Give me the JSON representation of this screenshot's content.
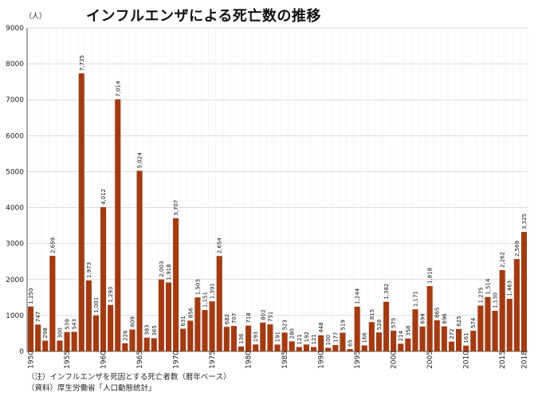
{
  "chart_data": {
    "type": "bar",
    "title": "インフルエンザによる死亡数の推移",
    "y_unit_label": "（人）",
    "xlabel": "",
    "ylabel": "",
    "ylim": [
      0,
      9000
    ],
    "yticks": [
      0,
      1000,
      2000,
      3000,
      4000,
      5000,
      6000,
      7000,
      8000,
      9000
    ],
    "x_tick_labels": [
      "1950",
      "1955",
      "1960",
      "1965",
      "1970",
      "1975",
      "1980",
      "1985",
      "1990",
      "1995",
      "2000",
      "2005",
      "2010",
      "2015",
      "2018"
    ],
    "grid": true,
    "bar_color": "#a33b12",
    "categories": [
      1950,
      1951,
      1952,
      1953,
      1954,
      1955,
      1956,
      1957,
      1958,
      1959,
      1960,
      1961,
      1962,
      1963,
      1964,
      1965,
      1966,
      1967,
      1968,
      1969,
      1970,
      1971,
      1972,
      1973,
      1974,
      1975,
      1976,
      1977,
      1978,
      1979,
      1980,
      1981,
      1982,
      1983,
      1984,
      1985,
      1986,
      1987,
      1988,
      1989,
      1990,
      1991,
      1992,
      1993,
      1994,
      1995,
      1996,
      1997,
      1998,
      1999,
      2000,
      2001,
      2002,
      2003,
      2004,
      2005,
      2006,
      2007,
      2008,
      2009,
      2010,
      2011,
      2012,
      2013,
      2014,
      2015,
      2016,
      2017,
      2018
    ],
    "values": [
      1250,
      747,
      298,
      2659,
      300,
      539,
      543,
      7735,
      1973,
      1001,
      4012,
      1293,
      7014,
      226,
      609,
      5024,
      383,
      365,
      2003,
      1918,
      3707,
      631,
      856,
      1503,
      1151,
      1391,
      2654,
      682,
      707,
      136,
      718,
      193,
      802,
      751,
      191,
      523,
      280,
      121,
      192,
      121,
      448,
      100,
      177,
      519,
      65,
      1244,
      166,
      815,
      528,
      1382,
      575,
      214,
      358,
      1171,
      694,
      1818,
      865,
      696,
      272,
      625,
      161,
      574,
      1275,
      1514,
      1130,
      2262,
      1463,
      2569,
      3325
    ],
    "data_labels": [
      "1,250",
      "747",
      "298",
      "2,659",
      "300",
      "539",
      "543",
      "7,735",
      "1,973",
      "1,001",
      "4,012",
      "1,293",
      "7,014",
      "226",
      "609",
      "5,024",
      "383",
      "365",
      "2,003",
      "1,918",
      "3,707",
      "631",
      "856",
      "1,503",
      "1,151",
      "1,391",
      "2,654",
      "682",
      "707",
      "136",
      "718",
      "193",
      "802",
      "751",
      "191",
      "523",
      "280",
      "121",
      "192",
      "121",
      "448",
      "100",
      "177",
      "519",
      "65",
      "1,244",
      "166",
      "815",
      "528",
      "1,382",
      "575",
      "214",
      "358",
      "1,171",
      "694",
      "1,818",
      "865",
      "696",
      "272",
      "625",
      "161",
      "574",
      "1,275",
      "1,514",
      "1,130",
      "2,262",
      "1,463",
      "2,569",
      "3,325"
    ]
  },
  "notes": {
    "note1": "（注）インフルエンザを死因とする死亡者数（暦年ベース）",
    "note2": "（資料）厚生労働省「人口動態統計」"
  }
}
